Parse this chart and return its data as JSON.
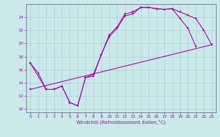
{
  "xlabel": "Windchill (Refroidissement éolien,°C)",
  "background_color": "#caeaea",
  "grid_color": "#aacccc",
  "line_color": "#aa00aa",
  "xlim": [
    -0.5,
    23.5
  ],
  "ylim": [
    9.5,
    26.0
  ],
  "xticks": [
    0,
    1,
    2,
    3,
    4,
    5,
    6,
    7,
    8,
    9,
    10,
    11,
    12,
    13,
    14,
    15,
    16,
    17,
    18,
    19,
    20,
    21,
    22,
    23
  ],
  "yticks": [
    10,
    12,
    14,
    16,
    18,
    20,
    22,
    24
  ],
  "line1_x": [
    0,
    1,
    2,
    3,
    4,
    5,
    6,
    7,
    8,
    9,
    10,
    11,
    12,
    13,
    14,
    15,
    16,
    17,
    18,
    19,
    20,
    21
  ],
  "line1_y": [
    17.0,
    15.5,
    13.0,
    13.0,
    13.5,
    11.0,
    10.5,
    14.8,
    15.0,
    18.3,
    21.0,
    22.3,
    24.2,
    24.5,
    25.5,
    25.5,
    25.3,
    25.2,
    25.3,
    23.8,
    22.3,
    19.5
  ],
  "line2_x": [
    0,
    2,
    3,
    4,
    5,
    6,
    7,
    8,
    9,
    10,
    11,
    12,
    13,
    14,
    15,
    16,
    17,
    18,
    19,
    20,
    21,
    22,
    23
  ],
  "line2_y": [
    17.0,
    13.0,
    13.0,
    13.5,
    11.0,
    10.5,
    14.8,
    15.3,
    18.3,
    21.3,
    22.5,
    24.5,
    24.8,
    25.5,
    25.5,
    25.3,
    25.2,
    25.3,
    24.8,
    24.3,
    23.8,
    22.0,
    19.8
  ],
  "line3_x": [
    0,
    23
  ],
  "line3_y": [
    13.0,
    19.8
  ]
}
